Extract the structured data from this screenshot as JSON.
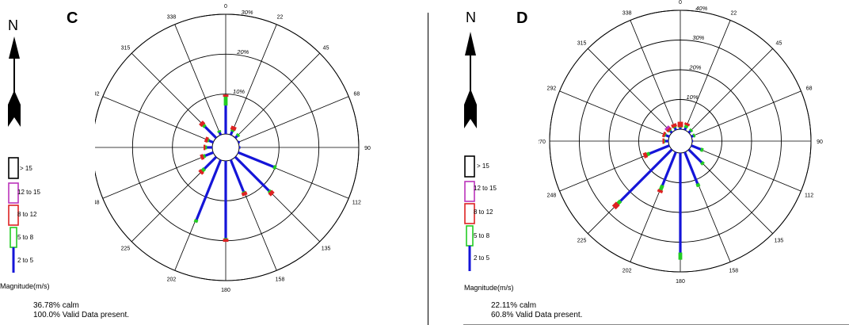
{
  "panels": [
    {
      "letter": "C",
      "north": "N",
      "magnitude_label": "Magnitude(m/s)",
      "calm": "36.78% calm",
      "valid": "100.0% Valid Data present.",
      "legend": [
        "> 15",
        "12 to 15",
        "8 to 12",
        "5 to 8",
        "2 to 5"
      ]
    },
    {
      "letter": "D",
      "north": "N",
      "magnitude_label": "Magnitude(m/s)",
      "calm": "22.11% calm",
      "valid": "60.8% Valid Data present.",
      "legend": [
        "> 15",
        "12 to 15",
        "8 to 12",
        "5 to 8",
        "2 to 5"
      ]
    }
  ],
  "colors": {
    "bin_2_5": "#1515d8",
    "bin_5_8": "#22cc22",
    "bin_8_12": "#dd2222",
    "bin_12_15": "#bb33bb",
    "bin_gt_15": "#000000"
  },
  "chart_data": [
    {
      "type": "wind-rose",
      "panel": "C",
      "direction_labels": [
        "0",
        "22",
        "45",
        "68",
        "90",
        "112",
        "135",
        "158",
        "180",
        "202",
        "225",
        "248",
        "270",
        "292",
        "315",
        "338"
      ],
      "ring_labels": [
        "10%",
        "20%",
        "30%"
      ],
      "rmax_percent": 30,
      "bins": [
        "2 to 5",
        "5 to 8",
        "8 to 12",
        "12 to 15",
        "> 15"
      ],
      "petals": [
        {
          "direction": 0,
          "segments": [
            7.2,
            2.2,
            0.4,
            0,
            0
          ]
        },
        {
          "direction": 22,
          "segments": [
            1.0,
            0.4,
            0.8,
            0,
            0
          ]
        },
        {
          "direction": 45,
          "segments": [
            0.8,
            0.4,
            0,
            0,
            0
          ]
        },
        {
          "direction": 68,
          "segments": [
            0.4,
            0,
            0,
            0,
            0
          ]
        },
        {
          "direction": 90,
          "segments": [
            0.3,
            0,
            0,
            0,
            0
          ]
        },
        {
          "direction": 112,
          "segments": [
            9.6,
            0.6,
            0,
            0,
            0
          ]
        },
        {
          "direction": 135,
          "segments": [
            12.0,
            0.4,
            0.8,
            0,
            0
          ]
        },
        {
          "direction": 158,
          "segments": [
            8.6,
            0.2,
            0.7,
            0,
            0
          ]
        },
        {
          "direction": 180,
          "segments": [
            19.4,
            0.2,
            0.6,
            0,
            0
          ]
        },
        {
          "direction": 202,
          "segments": [
            16.2,
            0.6,
            0,
            0,
            0
          ]
        },
        {
          "direction": 225,
          "segments": [
            4.2,
            0.8,
            0.6,
            0,
            0
          ]
        },
        {
          "direction": 248,
          "segments": [
            2.2,
            0.5,
            0.6,
            0,
            0
          ]
        },
        {
          "direction": 270,
          "segments": [
            1.4,
            0.4,
            0.3,
            0,
            0
          ]
        },
        {
          "direction": 292,
          "segments": [
            1.2,
            0.3,
            0.6,
            0,
            0
          ]
        },
        {
          "direction": 315,
          "segments": [
            4.0,
            0.6,
            0.8,
            0,
            0
          ]
        },
        {
          "direction": 338,
          "segments": [
            0.8,
            0.3,
            0,
            0,
            0
          ]
        }
      ]
    },
    {
      "type": "wind-rose",
      "panel": "D",
      "direction_labels": [
        "0",
        "22",
        "45",
        "68",
        "90",
        "112",
        "135",
        "158",
        "180",
        "202",
        "225",
        "248",
        "270",
        "292",
        "315",
        "338"
      ],
      "ring_labels": [
        "10%",
        "20%",
        "30%",
        "40%"
      ],
      "rmax_percent": 40,
      "bins": [
        "2 to 5",
        "5 to 8",
        "8 to 12",
        "12 to 15",
        "> 15"
      ],
      "petals": [
        {
          "direction": 0,
          "segments": [
            0.6,
            0.2,
            1.6,
            0,
            0
          ]
        },
        {
          "direction": 22,
          "segments": [
            0.9,
            0.9,
            0.6,
            0,
            0
          ]
        },
        {
          "direction": 45,
          "segments": [
            0.9,
            0.5,
            0,
            0,
            0
          ]
        },
        {
          "direction": 68,
          "segments": [
            0.8,
            0.3,
            0,
            0,
            0
          ]
        },
        {
          "direction": 90,
          "segments": [
            0.3,
            0,
            0,
            0,
            0
          ]
        },
        {
          "direction": 112,
          "segments": [
            3.5,
            0.7,
            0,
            0,
            0
          ]
        },
        {
          "direction": 135,
          "segments": [
            6.2,
            0.7,
            0,
            0,
            0
          ]
        },
        {
          "direction": 158,
          "segments": [
            11.5,
            0.9,
            0,
            0,
            0
          ]
        },
        {
          "direction": 180,
          "segments": [
            33.6,
            2.2,
            0,
            0,
            0
          ]
        },
        {
          "direction": 202,
          "segments": [
            12.1,
            1.7,
            0.7,
            0,
            0
          ]
        },
        {
          "direction": 225,
          "segments": [
            24.5,
            1.3,
            1.7,
            0,
            0
          ]
        },
        {
          "direction": 248,
          "segments": [
            7.2,
            1.0,
            1.0,
            0,
            0
          ]
        },
        {
          "direction": 270,
          "segments": [
            1.2,
            0.3,
            0.4,
            0,
            0
          ]
        },
        {
          "direction": 292,
          "segments": [
            1.3,
            0.3,
            0.6,
            0,
            0
          ]
        },
        {
          "direction": 315,
          "segments": [
            0.8,
            0.3,
            0.8,
            0.6,
            0
          ]
        },
        {
          "direction": 338,
          "segments": [
            0.9,
            0.3,
            0.9,
            0,
            0
          ]
        }
      ]
    }
  ]
}
